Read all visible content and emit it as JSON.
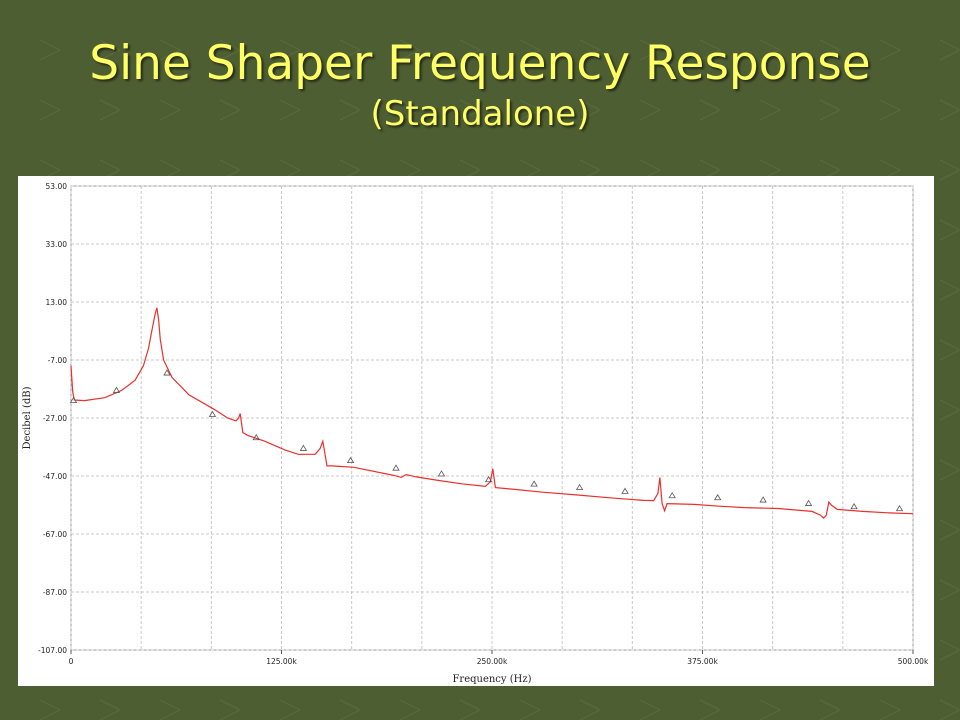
{
  "slide": {
    "title": "Sine Shaper Frequency Response",
    "subtitle": "(Standalone)"
  },
  "colors": {
    "background": "#4e5e33",
    "title": "#ffff66",
    "trace": "#e8302c",
    "grid": "#c8c8c8"
  },
  "chart_data": {
    "type": "line",
    "xlabel": "Frequency (Hz)",
    "ylabel": "Decibel (dB)",
    "xlim": [
      0,
      500000
    ],
    "ylim": [
      -107,
      53
    ],
    "x_ticks": [
      0,
      125000,
      250000,
      375000,
      500000
    ],
    "x_tick_labels": [
      "0",
      "125.00k",
      "250.00k",
      "375.00k",
      "500.00k"
    ],
    "y_ticks": [
      53,
      33,
      13,
      -7,
      -27,
      -47,
      -67,
      -87,
      -107
    ],
    "y_tick_labels": [
      "53.00",
      "33.00",
      "13.00",
      "-7.00",
      "-27.00",
      "-47.00",
      "-67.00",
      "-87.00",
      "-107.00"
    ],
    "grid": true,
    "series": [
      {
        "values": [
          [
            0,
            -9
          ],
          [
            1000,
            -18
          ],
          [
            2000,
            -20.8
          ],
          [
            8000,
            -21
          ],
          [
            20000,
            -20
          ],
          [
            30000,
            -17.5
          ],
          [
            38000,
            -14
          ],
          [
            43000,
            -9
          ],
          [
            46000,
            -3
          ],
          [
            48000,
            3
          ],
          [
            50000,
            9
          ],
          [
            51000,
            11
          ],
          [
            52000,
            7
          ],
          [
            53000,
            0
          ],
          [
            55000,
            -7
          ],
          [
            60000,
            -13
          ],
          [
            70000,
            -19
          ],
          [
            85000,
            -24
          ],
          [
            93000,
            -27
          ],
          [
            98000,
            -28
          ],
          [
            99500,
            -27
          ],
          [
            100500,
            -25.5
          ],
          [
            102000,
            -32
          ],
          [
            105000,
            -33
          ],
          [
            115000,
            -35
          ],
          [
            127000,
            -38
          ],
          [
            135000,
            -39.5
          ],
          [
            145000,
            -39.5
          ],
          [
            148000,
            -37.5
          ],
          [
            149500,
            -35
          ],
          [
            152000,
            -43.5
          ],
          [
            155000,
            -43.5
          ],
          [
            168000,
            -44
          ],
          [
            185000,
            -46
          ],
          [
            192000,
            -46.8
          ],
          [
            196000,
            -47.5
          ],
          [
            199000,
            -46.5
          ],
          [
            205000,
            -47.3
          ],
          [
            218000,
            -48.5
          ],
          [
            232000,
            -49.7
          ],
          [
            246000,
            -50.6
          ],
          [
            249000,
            -49
          ],
          [
            250500,
            -44.5
          ],
          [
            252000,
            -51
          ],
          [
            265000,
            -51.7
          ],
          [
            280000,
            -52.6
          ],
          [
            300000,
            -53.5
          ],
          [
            320000,
            -54.5
          ],
          [
            340000,
            -55.4
          ],
          [
            346000,
            -55.5
          ],
          [
            348500,
            -53
          ],
          [
            349700,
            -47.5
          ],
          [
            351000,
            -56.5
          ],
          [
            352500,
            -59
          ],
          [
            354000,
            -56.5
          ],
          [
            370000,
            -56.8
          ],
          [
            385000,
            -57.4
          ],
          [
            400000,
            -57.9
          ],
          [
            420000,
            -58.2
          ],
          [
            440000,
            -59.2
          ],
          [
            445000,
            -60.5
          ],
          [
            447000,
            -61.5
          ],
          [
            448500,
            -60.5
          ],
          [
            450000,
            -56
          ],
          [
            451500,
            -57
          ],
          [
            455000,
            -58.5
          ],
          [
            470000,
            -59.2
          ],
          [
            485000,
            -59.7
          ],
          [
            500000,
            -60
          ]
        ]
      }
    ],
    "markers": [
      [
        1500,
        -21
      ],
      [
        27000,
        -17.5
      ],
      [
        57000,
        -11.5
      ],
      [
        84000,
        -25.8
      ],
      [
        110000,
        -33.8
      ],
      [
        138000,
        -37.5
      ],
      [
        166000,
        -41.7
      ],
      [
        193000,
        -44.3
      ],
      [
        220000,
        -46.3
      ],
      [
        248000,
        -48.3
      ],
      [
        275000,
        -49.8
      ],
      [
        302000,
        -51
      ],
      [
        329000,
        -52.3
      ],
      [
        357000,
        -53.8
      ],
      [
        384000,
        -54.5
      ],
      [
        411000,
        -55.3
      ],
      [
        438000,
        -56.5
      ],
      [
        465000,
        -57.6
      ],
      [
        492000,
        -58.3
      ]
    ]
  }
}
